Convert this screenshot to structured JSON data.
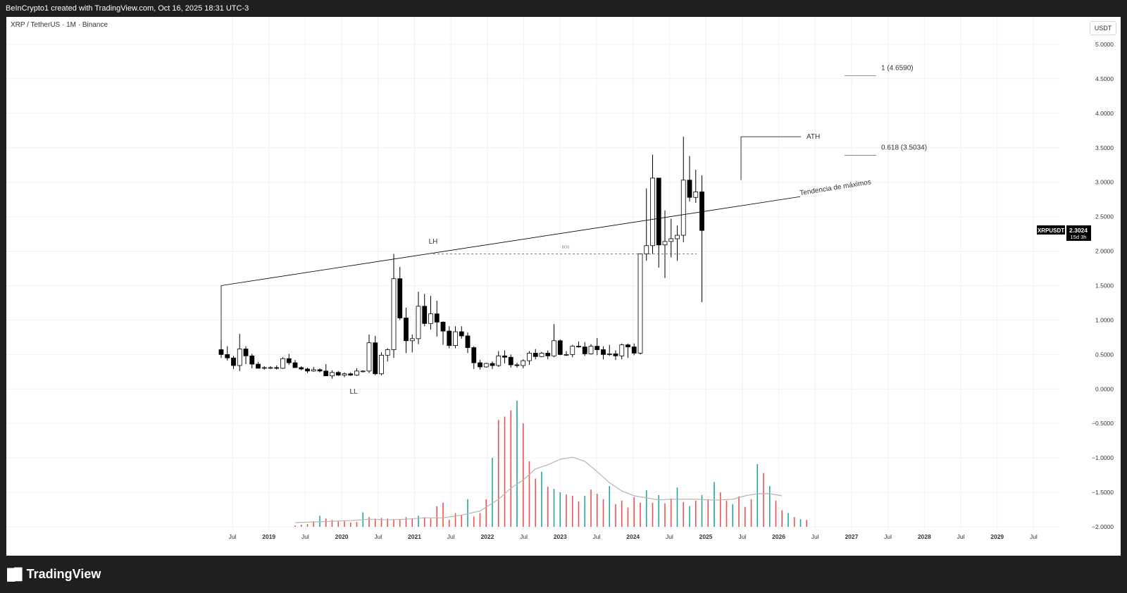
{
  "header": {
    "attribution": "BeInCrypto1 created with TradingView.com, Oct 16, 2025 18:31 UTC-3"
  },
  "symbol": {
    "title": "XRP / TetherUS · 1M · Binance",
    "currency": "USDT"
  },
  "price_axis": {
    "ticks": [
      "5.0000",
      "4.5000",
      "4.0000",
      "3.5000",
      "3.0000",
      "2.5000",
      "2.0000",
      "1.5000",
      "1.0000",
      "0.5000",
      "0.0000",
      "−0.5000",
      "−1.0000",
      "−1.5000",
      "−2.0000"
    ]
  },
  "time_axis": {
    "ticks": [
      "Jul",
      "2019",
      "Jul",
      "2020",
      "Jul",
      "2021",
      "Jul",
      "2022",
      "Jul",
      "2023",
      "Jul",
      "2024",
      "Jul",
      "2025",
      "Jul",
      "2026",
      "Jul",
      "2027",
      "Jul",
      "2028",
      "Jul",
      "2029",
      "Jul"
    ]
  },
  "annotations": {
    "ll": "LL",
    "lh": "LH",
    "bos": "BOS",
    "ath": "ATH",
    "fib_1": "1 (4.6590)",
    "fib_0618": "0.618 (3.5034)",
    "trendline": "Tendencia de máximos"
  },
  "price_label": {
    "symbol": "XRPUSDT",
    "price": "2.3024",
    "countdown": "15d 3h"
  },
  "footer": {
    "brand": "TradingView",
    "logo_icon": "tradingview-logo-icon"
  },
  "colors": {
    "up": "#ffffff",
    "down": "#000000",
    "vol_up": "#26a69a",
    "vol_down": "#ef5350",
    "text": "#333333"
  },
  "chart_data": {
    "type": "candlestick",
    "title": "XRP / TetherUS · 1M · Binance",
    "timeframe": "1M",
    "start": "2018-05",
    "ylim": [
      -2.0,
      5.0
    ],
    "candles": [
      [
        0.57,
        0.71,
        0.45,
        0.5
      ],
      [
        0.5,
        0.62,
        0.41,
        0.45
      ],
      [
        0.45,
        0.48,
        0.29,
        0.34
      ],
      [
        0.34,
        0.8,
        0.26,
        0.58
      ],
      [
        0.58,
        0.62,
        0.36,
        0.48
      ],
      [
        0.48,
        0.51,
        0.3,
        0.36
      ],
      [
        0.36,
        0.39,
        0.31,
        0.3
      ],
      [
        0.3,
        0.33,
        0.28,
        0.31
      ],
      [
        0.31,
        0.33,
        0.29,
        0.31
      ],
      [
        0.31,
        0.34,
        0.28,
        0.3
      ],
      [
        0.3,
        0.46,
        0.29,
        0.44
      ],
      [
        0.44,
        0.51,
        0.35,
        0.38
      ],
      [
        0.38,
        0.42,
        0.31,
        0.31
      ],
      [
        0.31,
        0.33,
        0.27,
        0.29
      ],
      [
        0.29,
        0.31,
        0.23,
        0.26
      ],
      [
        0.26,
        0.32,
        0.25,
        0.28
      ],
      [
        0.28,
        0.3,
        0.24,
        0.26
      ],
      [
        0.26,
        0.36,
        0.22,
        0.19
      ],
      [
        0.19,
        0.27,
        0.15,
        0.24
      ],
      [
        0.24,
        0.26,
        0.19,
        0.2
      ],
      [
        0.2,
        0.24,
        0.17,
        0.22
      ],
      [
        0.22,
        0.24,
        0.19,
        0.2
      ],
      [
        0.2,
        0.3,
        0.19,
        0.26
      ],
      [
        0.26,
        0.27,
        0.24,
        0.26
      ],
      [
        0.26,
        0.79,
        0.23,
        0.67
      ],
      [
        0.67,
        0.77,
        0.2,
        0.22
      ],
      [
        0.22,
        0.53,
        0.2,
        0.49
      ],
      [
        0.49,
        0.59,
        0.4,
        0.57
      ],
      [
        0.57,
        1.96,
        0.45,
        1.6
      ],
      [
        1.6,
        1.77,
        1.0,
        1.03
      ],
      [
        1.03,
        1.18,
        0.52,
        0.7
      ],
      [
        0.7,
        0.79,
        0.53,
        0.73
      ],
      [
        0.73,
        1.41,
        0.65,
        1.2
      ],
      [
        1.2,
        1.38,
        0.91,
        0.95
      ],
      [
        0.95,
        1.35,
        0.86,
        1.09
      ],
      [
        1.09,
        1.28,
        0.76,
        0.97
      ],
      [
        0.97,
        0.98,
        0.64,
        0.84
      ],
      [
        0.84,
        0.91,
        0.59,
        0.63
      ],
      [
        0.63,
        0.91,
        0.59,
        0.83
      ],
      [
        0.83,
        0.91,
        0.73,
        0.77
      ],
      [
        0.77,
        0.82,
        0.52,
        0.6
      ],
      [
        0.6,
        0.62,
        0.29,
        0.38
      ],
      [
        0.38,
        0.42,
        0.28,
        0.32
      ],
      [
        0.32,
        0.38,
        0.31,
        0.37
      ],
      [
        0.37,
        0.4,
        0.29,
        0.34
      ],
      [
        0.34,
        0.55,
        0.32,
        0.48
      ],
      [
        0.48,
        0.56,
        0.37,
        0.46
      ],
      [
        0.46,
        0.5,
        0.31,
        0.35
      ],
      [
        0.35,
        0.38,
        0.31,
        0.34
      ],
      [
        0.34,
        0.43,
        0.3,
        0.41
      ],
      [
        0.41,
        0.55,
        0.35,
        0.52
      ],
      [
        0.52,
        0.58,
        0.43,
        0.47
      ],
      [
        0.47,
        0.54,
        0.46,
        0.52
      ],
      [
        0.52,
        0.56,
        0.43,
        0.48
      ],
      [
        0.48,
        0.94,
        0.46,
        0.7
      ],
      [
        0.7,
        0.72,
        0.49,
        0.5
      ],
      [
        0.5,
        0.55,
        0.48,
        0.5
      ],
      [
        0.5,
        0.64,
        0.46,
        0.62
      ],
      [
        0.62,
        0.69,
        0.6,
        0.61
      ],
      [
        0.61,
        0.68,
        0.48,
        0.51
      ],
      [
        0.51,
        0.65,
        0.5,
        0.62
      ],
      [
        0.62,
        0.74,
        0.49,
        0.57
      ],
      [
        0.57,
        0.62,
        0.43,
        0.5
      ],
      [
        0.5,
        0.64,
        0.48,
        0.51
      ],
      [
        0.51,
        0.56,
        0.42,
        0.48
      ],
      [
        0.48,
        0.66,
        0.43,
        0.64
      ],
      [
        0.64,
        0.66,
        0.45,
        0.61
      ],
      [
        0.61,
        0.66,
        0.49,
        0.52
      ],
      [
        0.52,
        1.96,
        0.5,
        1.96
      ],
      [
        1.96,
        2.91,
        1.86,
        2.08
      ],
      [
        2.08,
        3.4,
        1.96,
        3.06
      ],
      [
        3.06,
        3.05,
        1.76,
        2.09
      ],
      [
        2.09,
        2.59,
        1.61,
        2.14
      ],
      [
        2.14,
        2.47,
        1.91,
        2.18
      ],
      [
        2.18,
        2.37,
        1.86,
        2.23
      ],
      [
        2.23,
        3.66,
        2.13,
        3.03
      ],
      [
        3.03,
        3.38,
        2.72,
        2.78
      ],
      [
        2.78,
        3.18,
        2.7,
        2.86
      ],
      [
        2.86,
        3.1,
        1.26,
        2.3
      ]
    ],
    "volume_ma": [
      [
        24,
        -1.94
      ],
      [
        30,
        -1.93
      ],
      [
        36,
        -1.92
      ],
      [
        42,
        -1.91
      ],
      [
        48,
        -1.89
      ],
      [
        54,
        -1.9
      ],
      [
        60,
        -1.89
      ],
      [
        66,
        -1.87
      ],
      [
        72,
        -1.87
      ],
      [
        78,
        -1.83
      ],
      [
        84,
        -1.77
      ],
      [
        90,
        -1.6
      ],
      [
        94,
        -1.44
      ],
      [
        98,
        -1.32
      ],
      [
        102,
        -1.16
      ],
      [
        106,
        -1.1
      ],
      [
        110,
        -1.02
      ],
      [
        114,
        -0.99
      ],
      [
        118,
        -1.05
      ],
      [
        122,
        -1.2
      ],
      [
        126,
        -1.36
      ],
      [
        130,
        -1.48
      ],
      [
        134,
        -1.55
      ],
      [
        138,
        -1.58
      ],
      [
        142,
        -1.61
      ],
      [
        146,
        -1.6
      ],
      [
        150,
        -1.6
      ],
      [
        154,
        -1.6
      ],
      [
        158,
        -1.61
      ],
      [
        162,
        -1.61
      ],
      [
        166,
        -1.6
      ],
      [
        170,
        -1.55
      ],
      [
        174,
        -1.52
      ],
      [
        178,
        -1.52
      ],
      [
        182,
        -1.55
      ]
    ],
    "volume_bars": [
      [
        24,
        -1.98,
        "down"
      ],
      [
        26,
        -1.97,
        "down"
      ],
      [
        28,
        -1.96,
        "down"
      ],
      [
        30,
        -1.92,
        "down"
      ],
      [
        32,
        -1.84,
        "up"
      ],
      [
        34,
        -1.88,
        "down"
      ],
      [
        36,
        -1.9,
        "down"
      ],
      [
        38,
        -1.92,
        "down"
      ],
      [
        40,
        -1.92,
        "down"
      ],
      [
        42,
        -1.94,
        "down"
      ],
      [
        44,
        -1.93,
        "down"
      ],
      [
        46,
        -1.79,
        "up"
      ],
      [
        48,
        -1.86,
        "down"
      ],
      [
        50,
        -1.88,
        "down"
      ],
      [
        52,
        -1.87,
        "down"
      ],
      [
        54,
        -1.88,
        "down"
      ],
      [
        56,
        -1.89,
        "down"
      ],
      [
        58,
        -1.89,
        "down"
      ],
      [
        60,
        -1.86,
        "down"
      ],
      [
        62,
        -1.88,
        "down"
      ],
      [
        64,
        -1.84,
        "up"
      ],
      [
        66,
        -1.86,
        "down"
      ],
      [
        68,
        -1.88,
        "down"
      ],
      [
        70,
        -1.7,
        "down"
      ],
      [
        72,
        -1.65,
        "down"
      ],
      [
        74,
        -1.9,
        "down"
      ],
      [
        76,
        -1.8,
        "down"
      ],
      [
        78,
        -1.83,
        "down"
      ],
      [
        80,
        -1.6,
        "up"
      ],
      [
        82,
        -1.85,
        "down"
      ],
      [
        84,
        -1.8,
        "down"
      ],
      [
        86,
        -1.6,
        "down"
      ],
      [
        88,
        -1.0,
        "up"
      ],
      [
        90,
        -0.45,
        "down"
      ],
      [
        92,
        -0.4,
        "down"
      ],
      [
        94,
        -0.31,
        "down"
      ],
      [
        96,
        -0.17,
        "up"
      ],
      [
        98,
        -0.5,
        "down"
      ],
      [
        100,
        -1.05,
        "down"
      ],
      [
        102,
        -1.3,
        "down"
      ],
      [
        104,
        -1.2,
        "up"
      ],
      [
        106,
        -1.42,
        "down"
      ],
      [
        108,
        -1.45,
        "up"
      ],
      [
        110,
        -1.5,
        "up"
      ],
      [
        112,
        -1.53,
        "down"
      ],
      [
        114,
        -1.55,
        "down"
      ],
      [
        116,
        -1.63,
        "down"
      ],
      [
        118,
        -1.55,
        "up"
      ],
      [
        120,
        -1.46,
        "down"
      ],
      [
        122,
        -1.52,
        "down"
      ],
      [
        124,
        -1.6,
        "down"
      ],
      [
        126,
        -1.41,
        "up"
      ],
      [
        128,
        -1.67,
        "down"
      ],
      [
        130,
        -1.62,
        "down"
      ],
      [
        132,
        -1.72,
        "down"
      ],
      [
        134,
        -1.57,
        "down"
      ],
      [
        136,
        -1.65,
        "down"
      ],
      [
        138,
        -1.47,
        "up"
      ],
      [
        140,
        -1.65,
        "down"
      ],
      [
        142,
        -1.54,
        "up"
      ],
      [
        144,
        -1.66,
        "down"
      ],
      [
        146,
        -1.59,
        "down"
      ],
      [
        148,
        -1.43,
        "up"
      ],
      [
        150,
        -1.64,
        "down"
      ],
      [
        152,
        -1.7,
        "up"
      ],
      [
        154,
        -1.62,
        "down"
      ],
      [
        156,
        -1.54,
        "up"
      ],
      [
        158,
        -1.6,
        "down"
      ],
      [
        160,
        -1.35,
        "up"
      ],
      [
        162,
        -1.5,
        "down"
      ],
      [
        164,
        -1.62,
        "down"
      ],
      [
        166,
        -1.67,
        "up"
      ],
      [
        168,
        -1.56,
        "down"
      ],
      [
        170,
        -1.71,
        "down"
      ],
      [
        172,
        -1.6,
        "down"
      ],
      [
        174,
        -1.09,
        "up"
      ],
      [
        176,
        -1.22,
        "down"
      ],
      [
        178,
        -1.41,
        "up"
      ],
      [
        180,
        -1.62,
        "down"
      ],
      [
        182,
        -1.76,
        "down"
      ],
      [
        184,
        -1.8,
        "up"
      ],
      [
        186,
        -1.86,
        "down"
      ],
      [
        188,
        -1.89,
        "up"
      ],
      [
        190,
        -1.9,
        "down"
      ]
    ]
  }
}
